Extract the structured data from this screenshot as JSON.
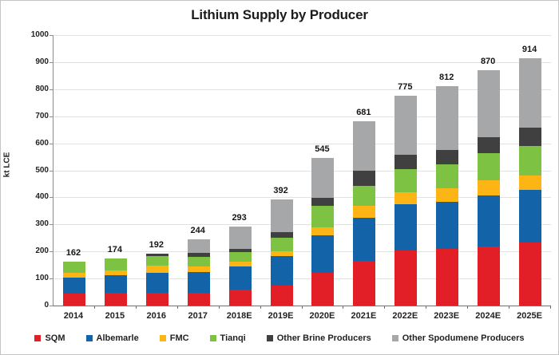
{
  "title": "Lithium Supply by Producer",
  "y_axis": {
    "label": "kt LCE",
    "ticks": [
      0,
      100,
      200,
      300,
      400,
      500,
      600,
      700,
      800,
      900,
      1000
    ]
  },
  "chart_data": {
    "type": "bar",
    "stacked": true,
    "title": "Lithium Supply by Producer",
    "xlabel": "",
    "ylabel": "kt LCE",
    "ylim": [
      0,
      1000
    ],
    "y_tick_step": 100,
    "grid": true,
    "legend_position": "bottom",
    "bar_total_labels": true,
    "categories": [
      "2014",
      "2015",
      "2016",
      "2017",
      "2018E",
      "2019E",
      "2020E",
      "2021E",
      "2022E",
      "2023E",
      "2024E",
      "2025E"
    ],
    "totals": [
      162,
      174,
      192,
      244,
      293,
      392,
      545,
      681,
      775,
      812,
      870,
      914
    ],
    "series": [
      {
        "name": "SQM",
        "color": "#e21f26",
        "values": [
          44,
          46,
          46,
          48,
          58,
          73,
          122,
          164,
          205,
          210,
          218,
          233
        ]
      },
      {
        "name": "Albemarle",
        "color": "#1263a8",
        "values": [
          59,
          65,
          76,
          77,
          87,
          110,
          137,
          161,
          170,
          174,
          188,
          195
        ]
      },
      {
        "name": "FMC",
        "color": "#fdb515",
        "values": [
          18,
          20,
          25,
          20,
          17,
          18,
          29,
          44,
          45,
          51,
          57,
          53
        ]
      },
      {
        "name": "Tianqi",
        "color": "#7dc242",
        "values": [
          41,
          43,
          36,
          35,
          35,
          51,
          80,
          74,
          84,
          86,
          100,
          109
        ]
      },
      {
        "name": "Other Brine Producers",
        "color": "#404041",
        "values": [
          0,
          0,
          9,
          14,
          12,
          18,
          29,
          56,
          53,
          54,
          59,
          67
        ]
      },
      {
        "name": "Other Spodumene Producers",
        "color": "#a5a7a9",
        "values": [
          0,
          0,
          0,
          50,
          84,
          122,
          148,
          182,
          218,
          237,
          248,
          257
        ]
      }
    ]
  }
}
